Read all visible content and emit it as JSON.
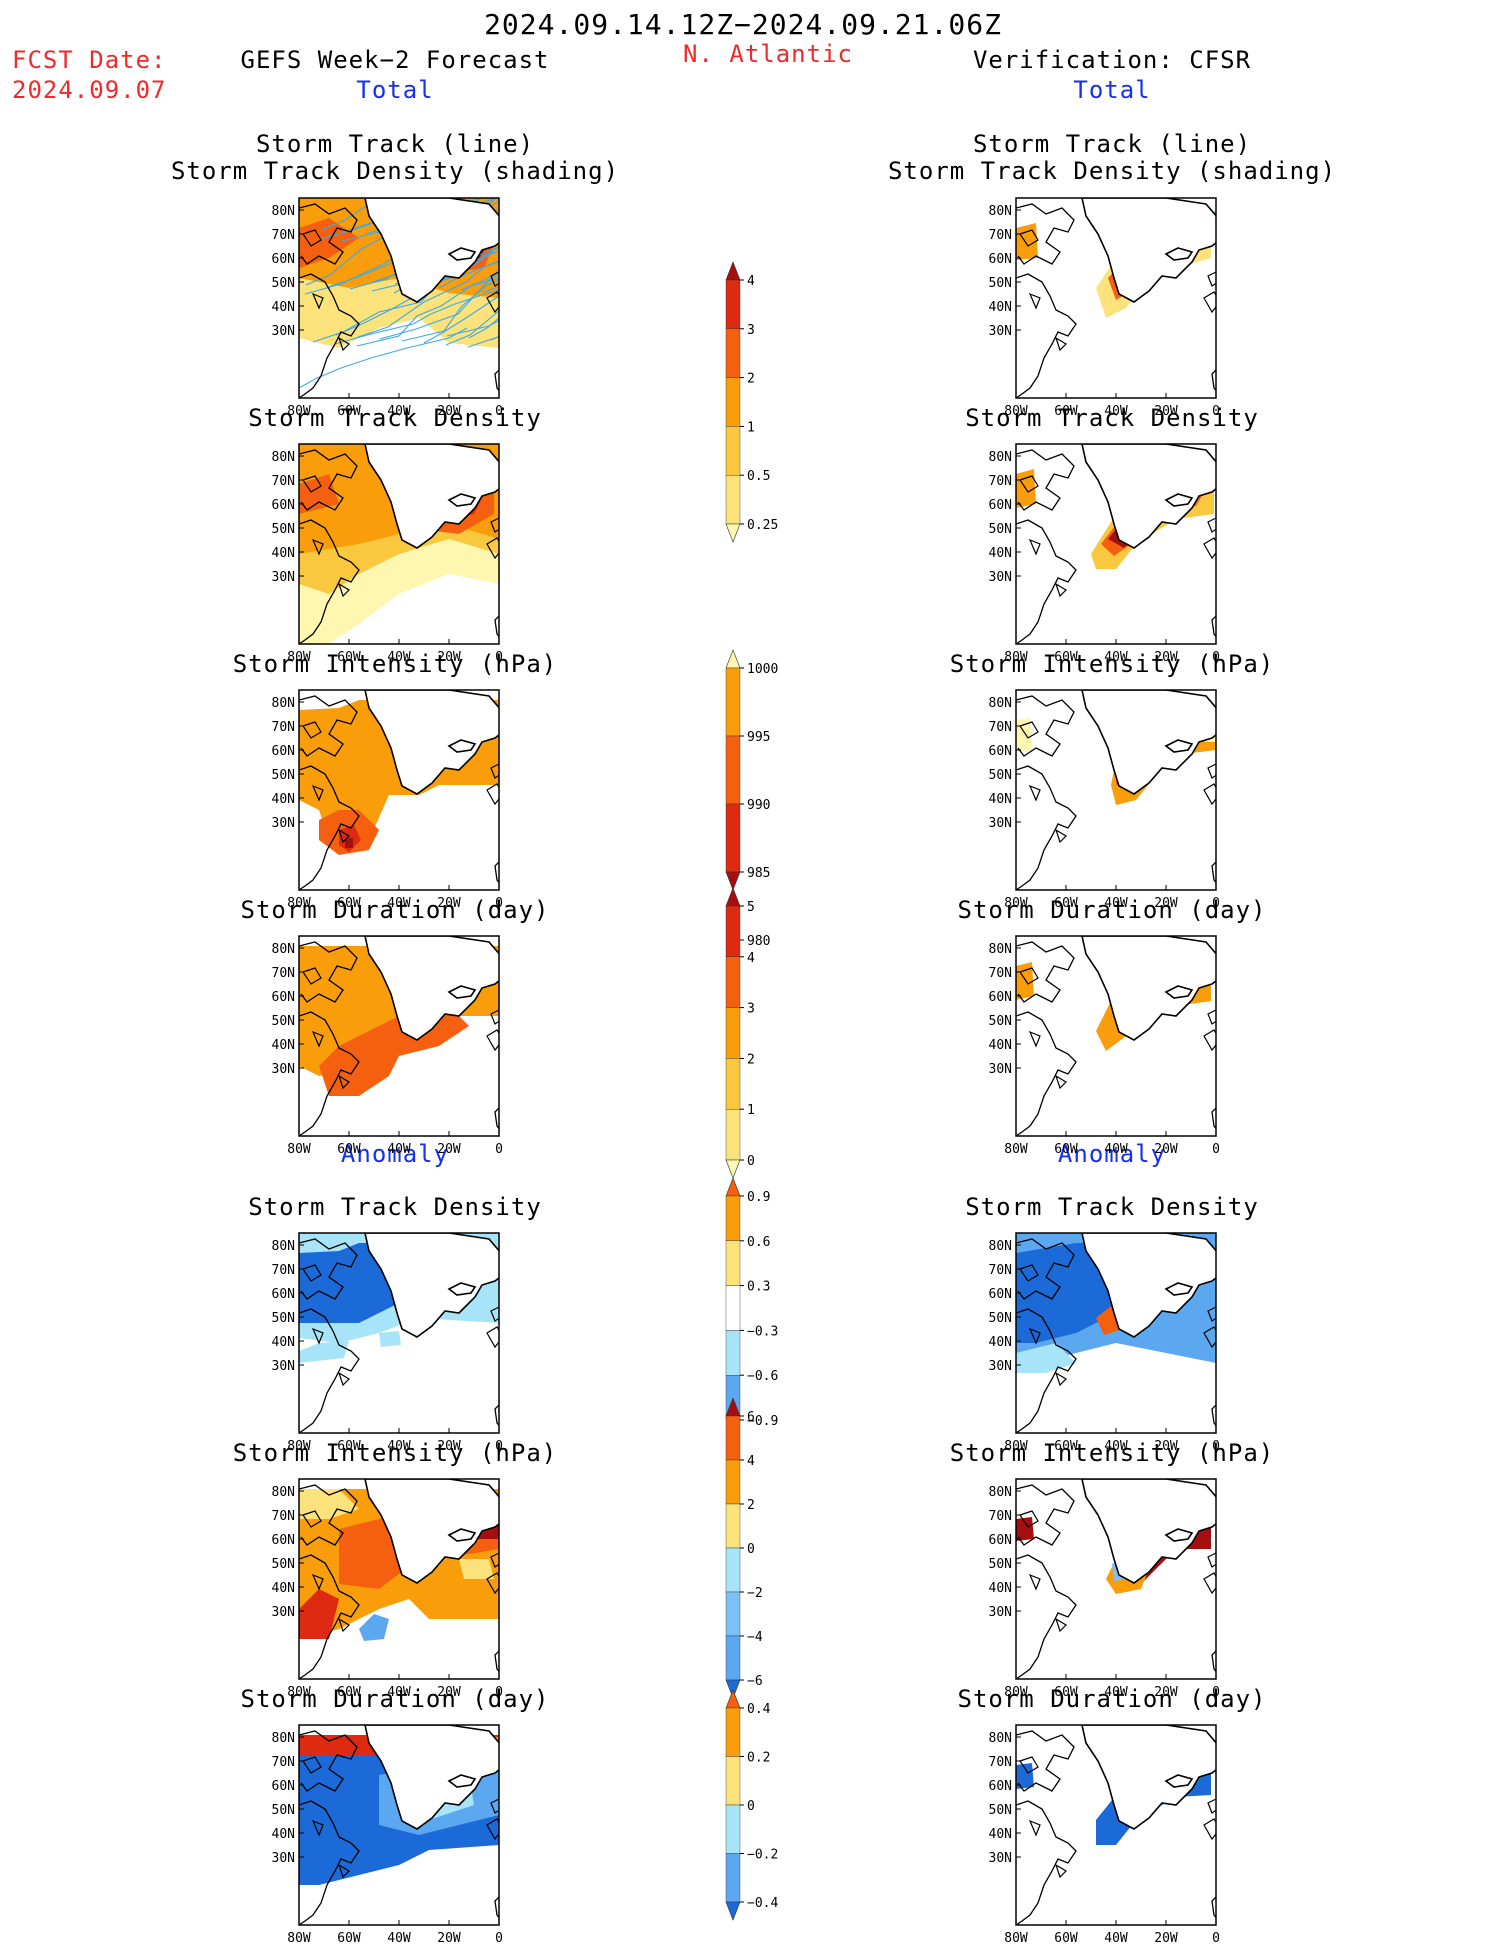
{
  "header": {
    "period": "2024.09.14.12Z−2024.09.21.06Z",
    "fcst_label": "FCST Date:",
    "fcst_date": "2024.09.07",
    "left_title": "GEFS Week−2 Forecast",
    "region": "N. Atlantic",
    "right_title": "Verification: CFSR",
    "total_label": "Total",
    "anomaly_label": "Anomaly"
  },
  "panel_titles": {
    "track_line": "Storm Track (line)",
    "track_density_shading": "Storm Track Density (shading)",
    "track_density": "Storm Track Density",
    "intensity": "Storm Intensity (hPa)",
    "duration": "Storm Duration (day)"
  },
  "axes": {
    "lat_labels": [
      "80N",
      "70N",
      "60N",
      "50N",
      "40N",
      "30N"
    ],
    "lon_labels": [
      "80W",
      "60W",
      "40W",
      "20W",
      "0"
    ]
  },
  "colorbars": [
    {
      "id": "total-density",
      "labels": [
        "4",
        "3",
        "2",
        "1",
        "0.5",
        "0.25"
      ],
      "colors": [
        "#a50f0f",
        "#dd2a10",
        "#f4600f",
        "#f99d0a",
        "#f9c83e",
        "#fbe27a",
        "#fff7b0"
      ]
    },
    {
      "id": "total-intensity",
      "labels": [
        "1000",
        "995",
        "990",
        "985",
        "980"
      ],
      "colors": [
        "#fff7b0",
        "#f99d0a",
        "#f4600f",
        "#dd2a10",
        "#a50f0f"
      ]
    },
    {
      "id": "total-duration",
      "labels": [
        "5",
        "4",
        "3",
        "2",
        "1",
        "0"
      ],
      "colors": [
        "#a50f0f",
        "#dd2a10",
        "#f4600f",
        "#f99d0a",
        "#f9c83e",
        "#fbe27a",
        "#fff7b0"
      ]
    },
    {
      "id": "anom-density",
      "labels": [
        "0.9",
        "0.6",
        "0.3",
        "−0.3",
        "−0.6",
        "−0.9"
      ],
      "colors": [
        "#f4600f",
        "#f99d0a",
        "#fbe27a",
        "#ffffff",
        "#a8e4f8",
        "#5ca8f0",
        "#1c6ad8"
      ]
    },
    {
      "id": "anom-intensity",
      "labels": [
        "6",
        "4",
        "2",
        "0",
        "−2",
        "−4",
        "−6"
      ],
      "colors": [
        "#a50f0f",
        "#f4600f",
        "#f99d0a",
        "#fbe27a",
        "#a8e4f8",
        "#7cc0f4",
        "#5ca8f0",
        "#1c6ad8"
      ]
    },
    {
      "id": "anom-duration",
      "labels": [
        "0.4",
        "0.2",
        "0",
        "−0.2",
        "−0.4"
      ],
      "colors": [
        "#f4600f",
        "#f99d0a",
        "#fbe27a",
        "#a8e4f8",
        "#5ca8f0",
        "#1c6ad8"
      ]
    }
  ],
  "colors": {
    "title_red": "#ee2a2a",
    "title_blue": "#1530f0",
    "density_high": "#a50f0f",
    "anomaly_negative": "#1c6ad8",
    "track_line": "#3fa9e8"
  }
}
